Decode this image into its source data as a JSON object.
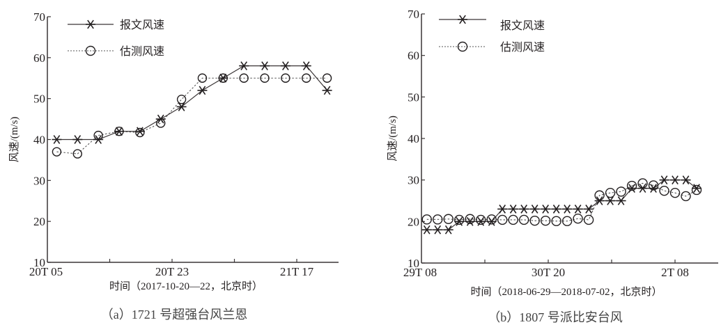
{
  "figure": {
    "panels": [
      {
        "id": "a",
        "caption": "（a）1721 号超强台风兰恩",
        "xlabel": "时间（2017-10-20—22，北京时）",
        "ylabel": "风速/(m/s)",
        "legend": [
          "报文风速",
          "估测风速"
        ]
      },
      {
        "id": "b",
        "caption": "（b）1807 号派比安台风",
        "xlabel": "时间（2018-06-29—2018-07-02，北京时）",
        "ylabel": "风速/(m/s)",
        "legend": [
          "报文风速",
          "估测风速"
        ]
      }
    ]
  },
  "chart_data": [
    {
      "type": "line",
      "title": "（a）1721 号超强台风兰恩",
      "xlabel": "时间（2017-10-20—22，北京时）",
      "ylabel": "风速/(m/s)",
      "ylim": [
        10,
        70
      ],
      "yticks": [
        10,
        20,
        30,
        40,
        50,
        60,
        70
      ],
      "xtick_labels": [
        "20T 05",
        "",
        "20T 23",
        "",
        "21T 17"
      ],
      "xtick_positions": [
        0,
        3,
        6,
        9,
        12
      ],
      "x": [
        0.45,
        1.45,
        2.45,
        3.45,
        4.45,
        5.45,
        6.45,
        7.45,
        8.45,
        9.45,
        10.45,
        11.45,
        12.45,
        13.45
      ],
      "xlim": [
        0,
        14.0
      ],
      "grid": false,
      "legend_position": "upper left",
      "series": [
        {
          "name": "报文风速",
          "marker": "asterisk",
          "line": "solid",
          "values": [
            40,
            40,
            40,
            42,
            42,
            45,
            48,
            52,
            55,
            58,
            58,
            58,
            58,
            52
          ]
        },
        {
          "name": "估测风速",
          "marker": "circle",
          "line": "dotted",
          "values": [
            37,
            36.5,
            41,
            42,
            41.7,
            44,
            49.8,
            55,
            55,
            55,
            55,
            55,
            55,
            55
          ]
        }
      ]
    },
    {
      "type": "line",
      "title": "（b）1807 号派比安台风",
      "xlabel": "时间（2018-06-29—2018-07-02，北京时）",
      "ylabel": "风速/(m/s)",
      "ylim": [
        10,
        70
      ],
      "yticks": [
        10,
        20,
        30,
        40,
        50,
        60,
        70
      ],
      "xtick_labels": [
        "29T 08",
        "",
        "30T 20",
        "",
        "2T 08"
      ],
      "xtick_positions": [
        0,
        6,
        12,
        18,
        24
      ],
      "x": [
        0.5,
        1.5,
        2.5,
        3.5,
        4.5,
        5.5,
        6.5,
        7.5,
        8.5,
        9.5,
        10.5,
        11.5,
        12.5,
        13.5,
        14.5,
        15.5,
        16.5,
        17.5,
        18.5,
        19.5,
        20.5,
        21.5,
        22.5,
        23.5,
        24.5,
        25.5
      ],
      "xlim": [
        0,
        27.5
      ],
      "grid": false,
      "legend_position": "upper left",
      "series": [
        {
          "name": "报文风速",
          "marker": "asterisk",
          "line": "solid",
          "values": [
            18,
            18,
            18,
            20,
            20,
            20,
            20,
            23,
            23,
            23,
            23,
            23,
            23,
            23,
            23,
            23,
            25,
            25,
            25,
            28,
            28,
            28,
            30,
            30,
            30,
            28
          ]
        },
        {
          "name": "估测风速",
          "marker": "circle",
          "line": "dotted",
          "values": [
            20.5,
            20.5,
            20.6,
            20.4,
            20.6,
            20.4,
            20.5,
            20.4,
            20.4,
            20.4,
            20.2,
            20.2,
            20.1,
            20.1,
            20.7,
            20.4,
            26.3,
            26.9,
            27.2,
            28.6,
            29.2,
            28.7,
            27.4,
            26.9,
            26.1,
            27.6
          ]
        }
      ]
    }
  ]
}
